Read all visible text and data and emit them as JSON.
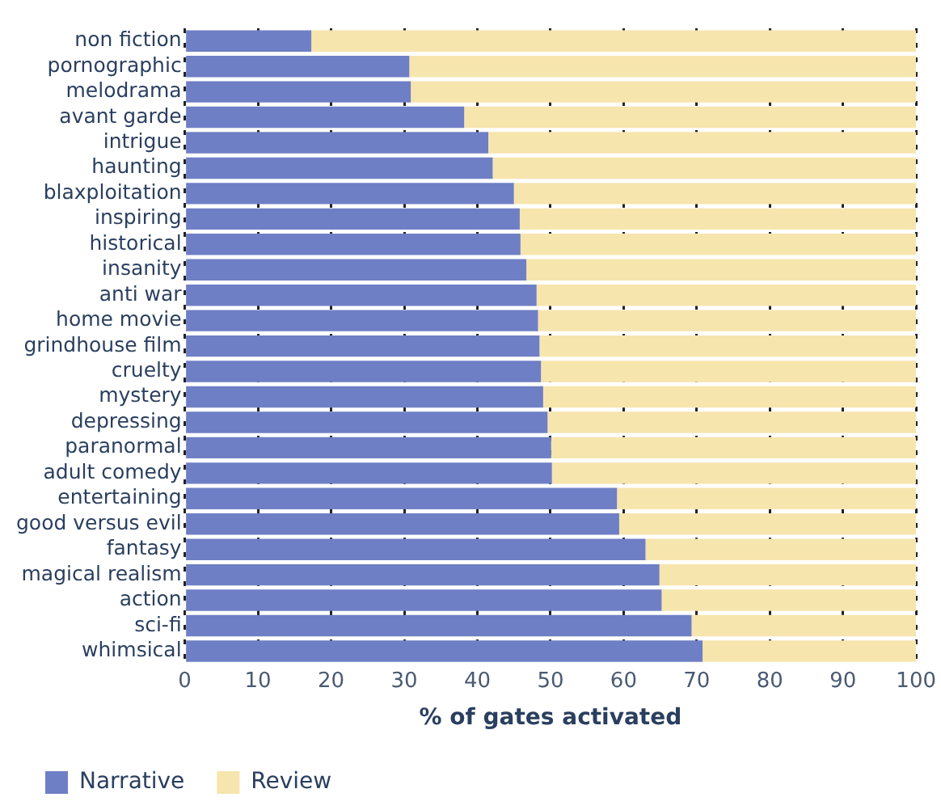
{
  "chart_data": {
    "type": "bar",
    "orientation": "horizontal",
    "stacked": true,
    "xlabel": "% of gates activated",
    "categories": [
      "non fiction",
      "pornographic",
      "melodrama",
      "avant garde",
      "intrigue",
      "haunting",
      "blaxploitation",
      "inspiring",
      "historical",
      "insanity",
      "anti war",
      "home movie",
      "grindhouse film",
      "cruelty",
      "mystery",
      "depressing",
      "paranormal",
      "adult comedy",
      "entertaining",
      "good versus evil",
      "fantasy",
      "magical realism",
      "action",
      "sci-fi",
      "whimsical"
    ],
    "series": [
      {
        "name": "Narrative",
        "color": "#6f7fc5",
        "values": [
          17.3,
          30.7,
          30.9,
          38.2,
          41.5,
          42.1,
          45.0,
          45.8,
          45.9,
          46.7,
          48.1,
          48.3,
          48.5,
          48.7,
          49.0,
          49.6,
          50.1,
          50.2,
          59.1,
          59.4,
          63.0,
          64.9,
          65.2,
          69.3,
          70.8
        ]
      },
      {
        "name": "Review",
        "color": "#f6e5ad",
        "values": [
          82.7,
          69.3,
          69.1,
          61.8,
          58.5,
          57.9,
          55.0,
          54.2,
          54.1,
          53.3,
          51.9,
          51.7,
          51.5,
          51.3,
          51.0,
          50.4,
          49.9,
          49.8,
          40.9,
          40.6,
          37.0,
          35.1,
          34.8,
          30.7,
          29.2
        ]
      }
    ],
    "xlim": [
      0,
      100
    ],
    "xticks": [
      0,
      10,
      20,
      30,
      40,
      50,
      60,
      70,
      80,
      90,
      100
    ],
    "grid": "x",
    "legend": "bottom left"
  }
}
